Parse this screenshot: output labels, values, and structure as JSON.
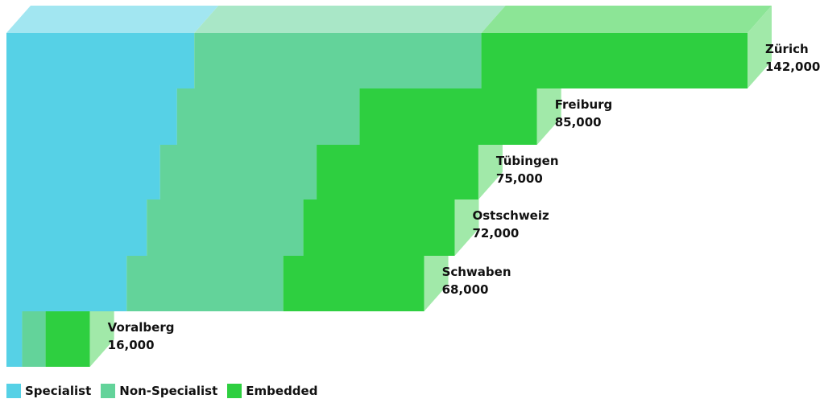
{
  "chart_data": {
    "type": "bar",
    "orientation": "horizontal",
    "stacked": true,
    "style": "3d",
    "categories": [
      "Zürich",
      "Freiburg",
      "Tübingen",
      "Ostschweiz",
      "Schwaben",
      "Voralberg"
    ],
    "value_labels": [
      "142,000",
      "85,000",
      "75,000",
      "72,000",
      "68,000",
      "16,000"
    ],
    "totals": [
      142000,
      85000,
      75000,
      72000,
      68000,
      16000
    ],
    "series": [
      {
        "name": "Specialist",
        "color": "#56d1e6",
        "values": [
          36000,
          16000,
          14000,
          13000,
          11000,
          3000
        ]
      },
      {
        "name": "Non-Specialist",
        "color": "#63d39a",
        "values": [
          55000,
          35000,
          30000,
          30000,
          30000,
          4500
        ]
      },
      {
        "name": "Embedded",
        "color": "#2ecf40",
        "values": [
          51000,
          34000,
          31000,
          29000,
          27000,
          8500
        ]
      }
    ],
    "legend_position": "bottom-left",
    "grid": false
  },
  "legend": {
    "items": [
      {
        "label": "Specialist",
        "color": "#56d1e6"
      },
      {
        "label": "Non-Specialist",
        "color": "#63d39a"
      },
      {
        "label": "Embedded",
        "color": "#2ecf40"
      }
    ]
  }
}
